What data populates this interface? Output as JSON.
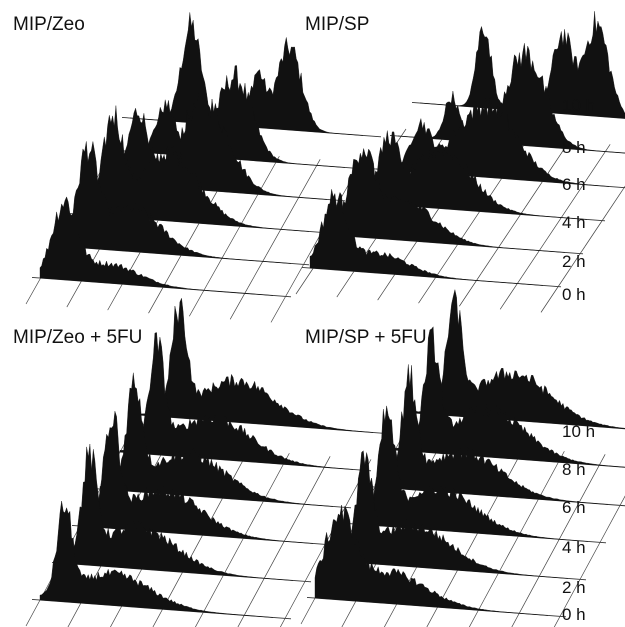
{
  "figure": {
    "time_labels": [
      "0 h",
      "2 h",
      "4 h",
      "6 h",
      "8 h",
      "10 h"
    ]
  },
  "chart_data": [
    {
      "type": "area",
      "title": "MIP/Zeo",
      "series": [
        {
          "name": "0 h",
          "peaks": [
            {
              "pos": 0.1,
              "h": 0.75,
              "w": 0.05
            },
            {
              "pos": 0.28,
              "h": 0.2,
              "w": 0.12
            }
          ]
        },
        {
          "name": "2 h",
          "peaks": [
            {
              "pos": 0.12,
              "h": 0.9,
              "w": 0.04
            },
            {
              "pos": 0.3,
              "h": 0.45,
              "w": 0.12
            }
          ]
        },
        {
          "name": "4 h",
          "peaks": [
            {
              "pos": 0.15,
              "h": 0.95,
              "w": 0.04
            },
            {
              "pos": 0.38,
              "h": 0.7,
              "w": 0.12
            }
          ]
        },
        {
          "name": "6 h",
          "peaks": [
            {
              "pos": 0.18,
              "h": 0.75,
              "w": 0.04
            },
            {
              "pos": 0.45,
              "h": 0.9,
              "w": 0.1
            }
          ]
        },
        {
          "name": "8 h",
          "peaks": [
            {
              "pos": 0.22,
              "h": 0.5,
              "w": 0.04
            },
            {
              "pos": 0.5,
              "h": 0.85,
              "w": 0.07
            }
          ]
        },
        {
          "name": "10 h",
          "peaks": [
            {
              "pos": 0.25,
              "h": 1.0,
              "w": 0.04
            },
            {
              "pos": 0.52,
              "h": 0.55,
              "w": 0.03
            },
            {
              "pos": 0.65,
              "h": 0.85,
              "w": 0.05
            }
          ]
        }
      ]
    },
    {
      "type": "area",
      "title": "MIP/SP",
      "series": [
        {
          "name": "0 h",
          "peaks": [
            {
              "pos": 0.1,
              "h": 0.7,
              "w": 0.05
            },
            {
              "pos": 0.28,
              "h": 0.2,
              "w": 0.12
            }
          ]
        },
        {
          "name": "2 h",
          "peaks": [
            {
              "pos": 0.12,
              "h": 0.8,
              "w": 0.05
            },
            {
              "pos": 0.3,
              "h": 0.4,
              "w": 0.12
            }
          ]
        },
        {
          "name": "4 h",
          "peaks": [
            {
              "pos": 0.14,
              "h": 0.6,
              "w": 0.04
            },
            {
              "pos": 0.36,
              "h": 0.6,
              "w": 0.12
            }
          ]
        },
        {
          "name": "6 h",
          "peaks": [
            {
              "pos": 0.18,
              "h": 0.45,
              "w": 0.04
            },
            {
              "pos": 0.45,
              "h": 0.75,
              "w": 0.12
            }
          ]
        },
        {
          "name": "8 h",
          "peaks": [
            {
              "pos": 0.22,
              "h": 0.45,
              "w": 0.03
            },
            {
              "pos": 0.52,
              "h": 0.95,
              "w": 0.08
            }
          ]
        },
        {
          "name": "10 h",
          "peaks": [
            {
              "pos": 0.26,
              "h": 0.85,
              "w": 0.03
            },
            {
              "pos": 0.58,
              "h": 0.8,
              "w": 0.04
            },
            {
              "pos": 0.72,
              "h": 0.95,
              "w": 0.05
            }
          ]
        }
      ]
    },
    {
      "type": "area",
      "title": "MIP/Zeo + 5FU",
      "series": [
        {
          "name": "0 h",
          "peaks": [
            {
              "pos": 0.1,
              "h": 0.8,
              "w": 0.03
            },
            {
              "pos": 0.3,
              "h": 0.3,
              "w": 0.15
            }
          ]
        },
        {
          "name": "2 h",
          "peaks": [
            {
              "pos": 0.12,
              "h": 0.9,
              "w": 0.03
            },
            {
              "pos": 0.32,
              "h": 0.4,
              "w": 0.15
            }
          ]
        },
        {
          "name": "4 h",
          "peaks": [
            {
              "pos": 0.13,
              "h": 0.95,
              "w": 0.03
            },
            {
              "pos": 0.34,
              "h": 0.4,
              "w": 0.15
            }
          ]
        },
        {
          "name": "6 h",
          "peaks": [
            {
              "pos": 0.14,
              "h": 0.95,
              "w": 0.03
            },
            {
              "pos": 0.36,
              "h": 0.4,
              "w": 0.15
            }
          ]
        },
        {
          "name": "8 h",
          "peaks": [
            {
              "pos": 0.15,
              "h": 0.95,
              "w": 0.03
            },
            {
              "pos": 0.38,
              "h": 0.4,
              "w": 0.15
            }
          ]
        },
        {
          "name": "10 h",
          "peaks": [
            {
              "pos": 0.16,
              "h": 1.0,
              "w": 0.03
            },
            {
              "pos": 0.4,
              "h": 0.4,
              "w": 0.15
            }
          ]
        }
      ]
    },
    {
      "type": "area",
      "title": "MIP/SP + 5FU",
      "series": [
        {
          "name": "0 h",
          "peaks": [
            {
              "pos": 0.1,
              "h": 0.7,
              "w": 0.06
            },
            {
              "pos": 0.3,
              "h": 0.3,
              "w": 0.15
            }
          ]
        },
        {
          "name": "2 h",
          "peaks": [
            {
              "pos": 0.12,
              "h": 0.85,
              "w": 0.03
            },
            {
              "pos": 0.32,
              "h": 0.4,
              "w": 0.15
            }
          ]
        },
        {
          "name": "4 h",
          "peaks": [
            {
              "pos": 0.13,
              "h": 0.95,
              "w": 0.03
            },
            {
              "pos": 0.34,
              "h": 0.4,
              "w": 0.15
            }
          ]
        },
        {
          "name": "6 h",
          "peaks": [
            {
              "pos": 0.14,
              "h": 0.95,
              "w": 0.03
            },
            {
              "pos": 0.36,
              "h": 0.4,
              "w": 0.15
            }
          ]
        },
        {
          "name": "8 h",
          "peaks": [
            {
              "pos": 0.15,
              "h": 0.95,
              "w": 0.03
            },
            {
              "pos": 0.38,
              "h": 0.45,
              "w": 0.15
            }
          ]
        },
        {
          "name": "10 h",
          "peaks": [
            {
              "pos": 0.16,
              "h": 1.0,
              "w": 0.03
            },
            {
              "pos": 0.4,
              "h": 0.45,
              "w": 0.15
            }
          ]
        }
      ]
    }
  ]
}
